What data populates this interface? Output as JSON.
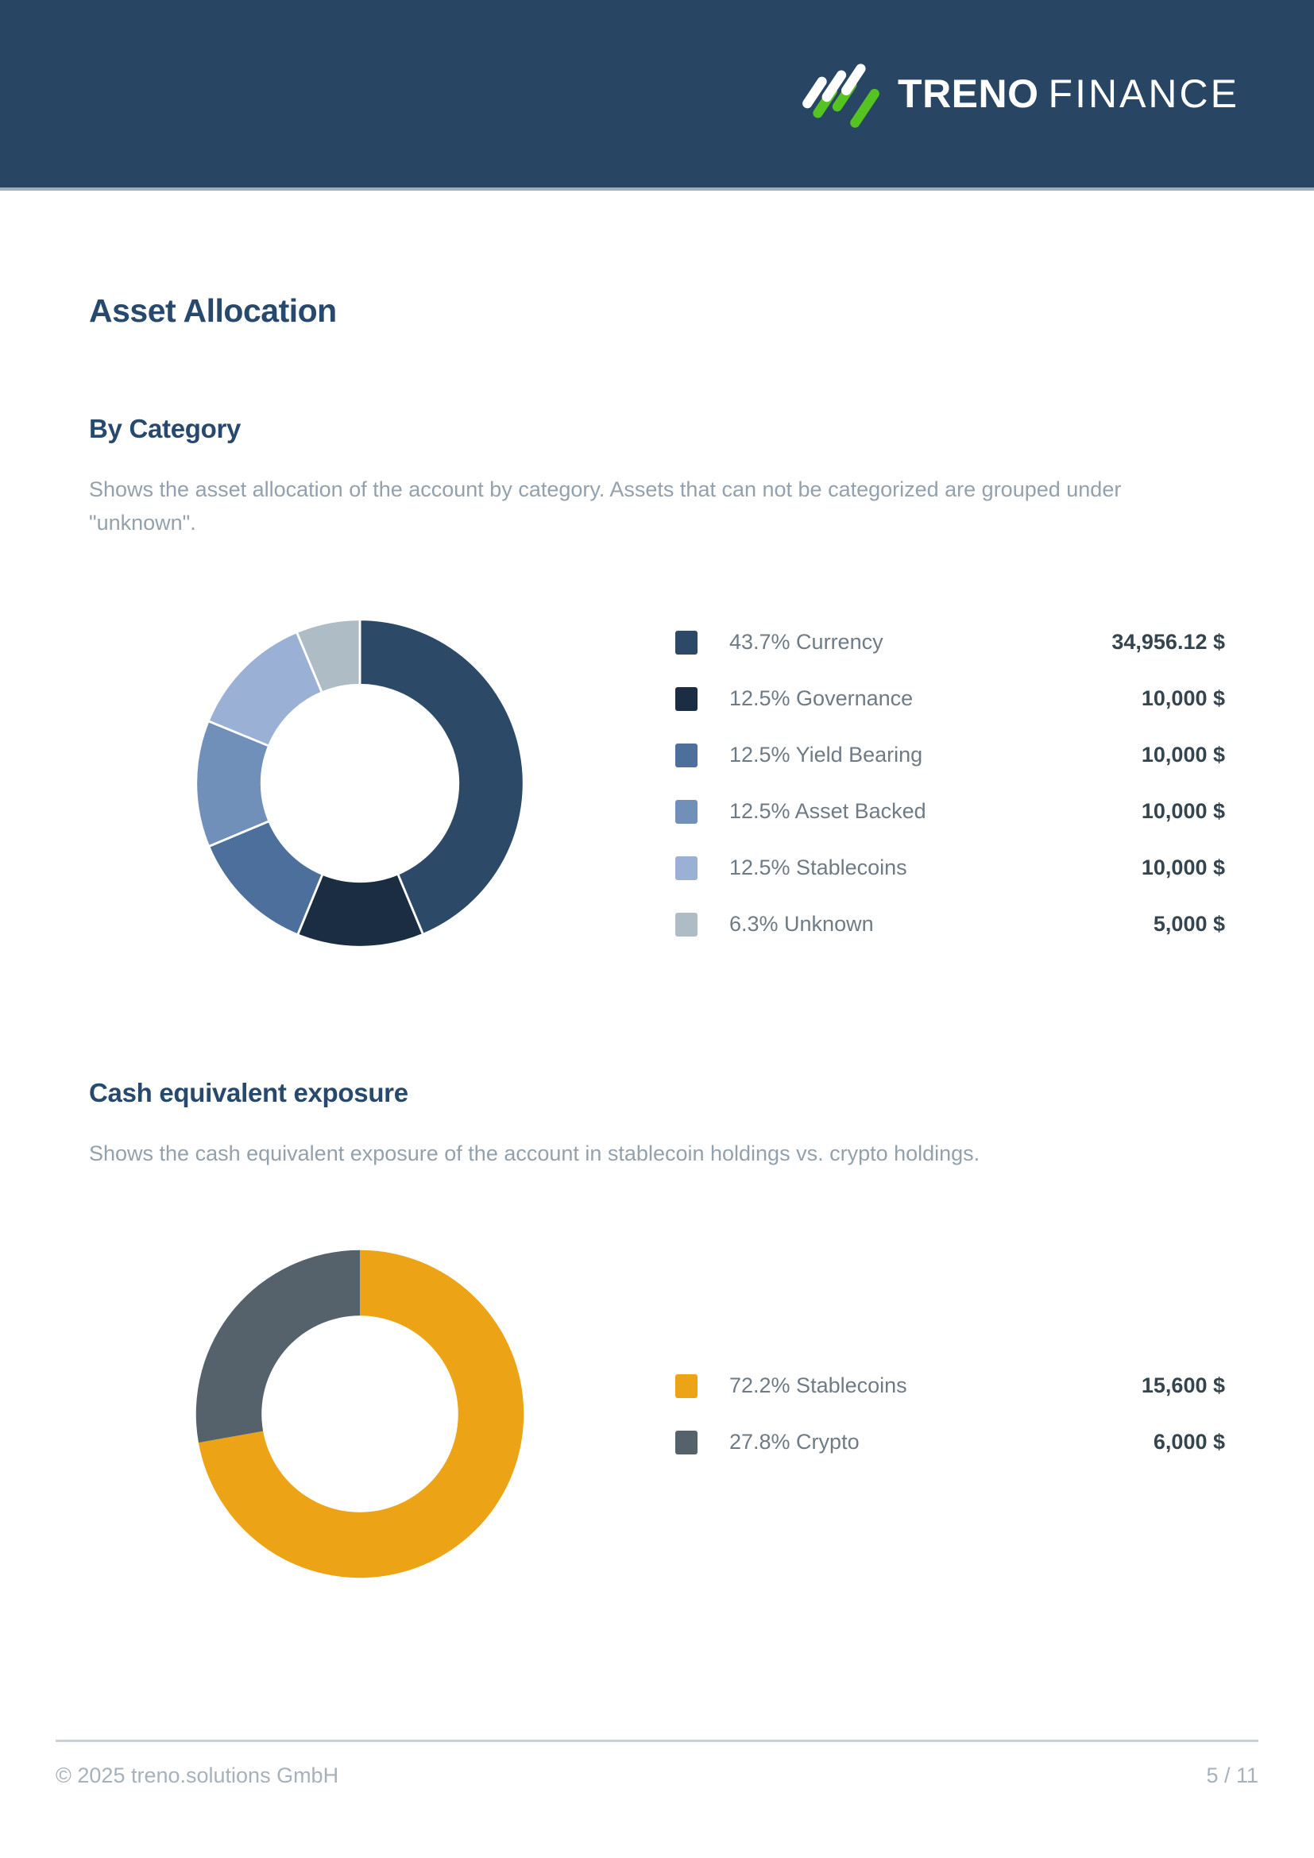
{
  "brand": {
    "name_bold": "TRENO",
    "name_light": "FINANCE",
    "logo_green": "#55C321",
    "logo_white": "#FFFFFF"
  },
  "header": {
    "background": "#284664",
    "border_color": "#9FAEBF"
  },
  "page_title": "Asset Allocation",
  "footer": {
    "copyright": "© 2025 treno.solutions GmbH",
    "page_number": "5 / 11"
  },
  "chart_data": [
    {
      "type": "donut",
      "title": "By Category",
      "description": "Shows the asset allocation of the account by category. Assets that can not be categorized are grouped under \"unknown\".",
      "unit": "$",
      "legend_position": "right",
      "start_angle_deg": 0,
      "slice_gap": 1.5,
      "items": [
        {
          "label": "Currency",
          "percent": 43.7,
          "value": 34956.12,
          "display_percent": "43.7%",
          "display_value": "34,956.12 $",
          "color": "#2C4A68"
        },
        {
          "label": "Governance",
          "percent": 12.5,
          "value": 10000,
          "display_percent": "12.5%",
          "display_value": "10,000 $",
          "color": "#1B2D42"
        },
        {
          "label": "Yield Bearing",
          "percent": 12.5,
          "value": 10000,
          "display_percent": "12.5%",
          "display_value": "10,000 $",
          "color": "#4C6F9C"
        },
        {
          "label": "Asset Backed",
          "percent": 12.5,
          "value": 10000,
          "display_percent": "12.5%",
          "display_value": "10,000 $",
          "color": "#7090BA"
        },
        {
          "label": "Stablecoins",
          "percent": 12.5,
          "value": 10000,
          "display_percent": "12.5%",
          "display_value": "10,000 $",
          "color": "#9AB1D5"
        },
        {
          "label": "Unknown",
          "percent": 6.3,
          "value": 5000,
          "display_percent": "6.3%",
          "display_value": "5,000 $",
          "color": "#AEBCC6"
        }
      ]
    },
    {
      "type": "donut",
      "title": "Cash equivalent exposure",
      "description": "Shows the cash equivalent exposure of the account in stablecoin holdings vs. crypto holdings.",
      "unit": "$",
      "legend_position": "right",
      "start_angle_deg": 0,
      "slice_gap": 0,
      "items": [
        {
          "label": "Stablecoins",
          "percent": 72.2,
          "value": 15600,
          "display_percent": "72.2%",
          "display_value": "15,600 $",
          "color": "#ECA315"
        },
        {
          "label": "Crypto",
          "percent": 27.8,
          "value": 6000,
          "display_percent": "27.8%",
          "display_value": "6,000 $",
          "color": "#55626B"
        }
      ]
    }
  ]
}
